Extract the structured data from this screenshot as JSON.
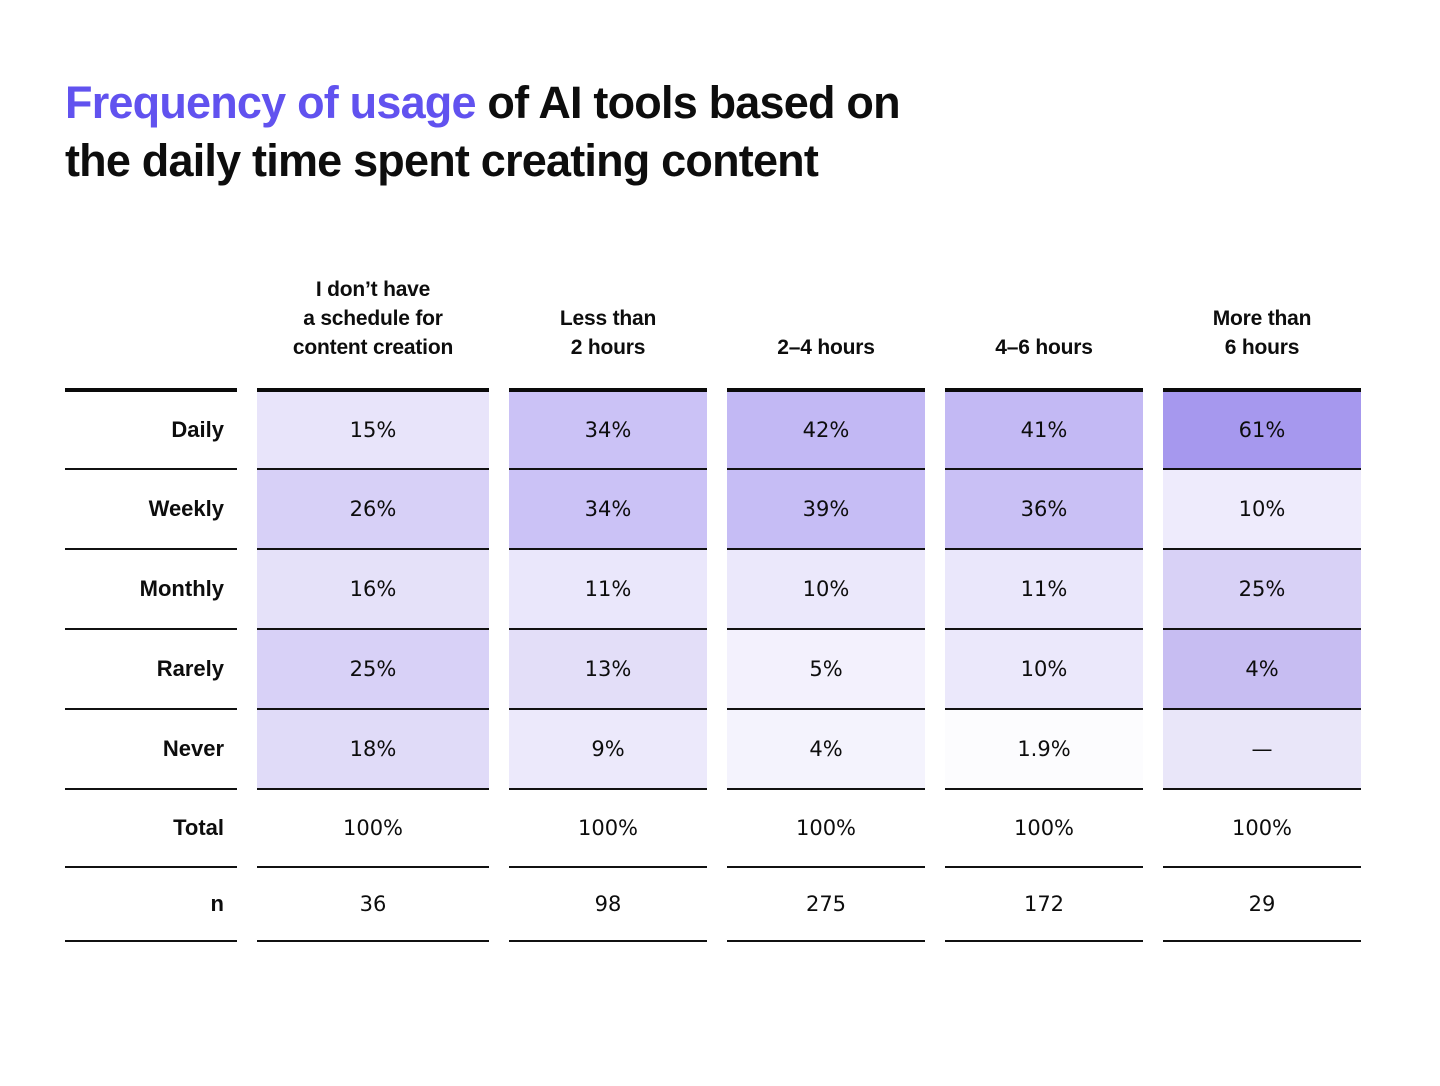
{
  "colors": {
    "accent": "#6152EF",
    "text": "#0D0D0D",
    "line": "#111111",
    "background": "#FFFFFF"
  },
  "title": {
    "highlight": "Frequency of usage",
    "rest_after": " of AI tools based on",
    "line2": "the daily time spent creating content"
  },
  "chart_data": {
    "type": "heatmap",
    "title": "Frequency of usage of AI tools based on the daily time spent creating content",
    "columns": [
      "I don’t have a schedule for content creation",
      "Less than 2 hours",
      "2–4 hours",
      "4–6 hours",
      "More than 6 hours"
    ],
    "rows": [
      "Daily",
      "Weekly",
      "Monthly",
      "Rarely",
      "Never"
    ],
    "values_percent": [
      [
        15,
        34,
        42,
        41,
        61
      ],
      [
        26,
        34,
        39,
        36,
        10
      ],
      [
        16,
        11,
        10,
        11,
        25
      ],
      [
        25,
        13,
        5,
        10,
        4
      ],
      [
        18,
        9,
        4,
        1.9,
        null
      ]
    ],
    "totals_percent": [
      100,
      100,
      100,
      100,
      100
    ],
    "sample_sizes": [
      36,
      98,
      275,
      172,
      29
    ],
    "legend_position": "none",
    "grid": "horizontal-rules"
  },
  "table": {
    "row_labels": [
      "Daily",
      "Weekly",
      "Monthly",
      "Rarely",
      "Never",
      "Total",
      "n"
    ],
    "columns": [
      {
        "header_lines": [
          "I don’t have",
          "a schedule for",
          "content creation"
        ],
        "cells": [
          {
            "text": "15%",
            "bg": "#E8E4FA"
          },
          {
            "text": "26%",
            "bg": "#D7D0F7"
          },
          {
            "text": "16%",
            "bg": "#E5E1F9"
          },
          {
            "text": "25%",
            "bg": "#D8D1F7"
          },
          {
            "text": "18%",
            "bg": "#E0DBF8"
          }
        ],
        "total": "100%",
        "n": "36"
      },
      {
        "header_lines": [
          "Less than",
          "2 hours"
        ],
        "cells": [
          {
            "text": "34%",
            "bg": "#CBC2F6"
          },
          {
            "text": "34%",
            "bg": "#CBC2F6"
          },
          {
            "text": "11%",
            "bg": "#EAE7FB"
          },
          {
            "text": "13%",
            "bg": "#E3DEF8"
          },
          {
            "text": "9%",
            "bg": "#ECE9FB"
          }
        ],
        "total": "100%",
        "n": "98"
      },
      {
        "header_lines": [
          "2–4 hours"
        ],
        "cells": [
          {
            "text": "42%",
            "bg": "#C2B8F4"
          },
          {
            "text": "39%",
            "bg": "#C6BDF5"
          },
          {
            "text": "10%",
            "bg": "#EBE8FB"
          },
          {
            "text": "5%",
            "bg": "#F3F1FD"
          },
          {
            "text": "4%",
            "bg": "#F4F3FD"
          }
        ],
        "total": "100%",
        "n": "275"
      },
      {
        "header_lines": [
          "4–6 hours"
        ],
        "cells": [
          {
            "text": "41%",
            "bg": "#C3B9F4"
          },
          {
            "text": "36%",
            "bg": "#C9C0F5"
          },
          {
            "text": "11%",
            "bg": "#EAE7FB"
          },
          {
            "text": "10%",
            "bg": "#EBE8FB"
          },
          {
            "text": "1.9%",
            "bg": "#FCFCFE"
          }
        ],
        "total": "100%",
        "n": "172"
      },
      {
        "header_lines": [
          "More than",
          "6 hours"
        ],
        "cells": [
          {
            "text": "61%",
            "bg": "#A698EE"
          },
          {
            "text": "10%",
            "bg": "#EEEBFC"
          },
          {
            "text": "25%",
            "bg": "#D8D1F6"
          },
          {
            "text": "4%",
            "bg": "#C7BDF2"
          },
          {
            "text": "—",
            "bg": "#E9E6F9"
          }
        ],
        "total": "100%",
        "n": "29"
      }
    ]
  }
}
